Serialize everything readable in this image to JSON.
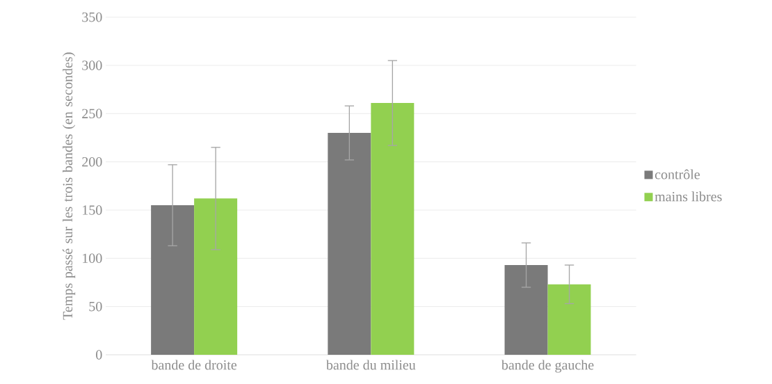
{
  "chart_data": {
    "type": "bar",
    "ylabel": "Temps passé sur les trois bandes (en secondes)",
    "categories": [
      "bande de droite",
      "bande du milieu",
      "bande de gauche"
    ],
    "series": [
      {
        "name": "contrôle",
        "color": "#7a7a7a",
        "values": [
          155,
          230,
          93
        ],
        "errors": [
          42,
          28,
          23
        ]
      },
      {
        "name": "mains libres",
        "color": "#92d050",
        "values": [
          162,
          261,
          73
        ],
        "errors": [
          53,
          44,
          20
        ]
      }
    ],
    "ylim": [
      0,
      350
    ],
    "yticks": [
      0,
      50,
      100,
      150,
      200,
      250,
      300,
      350
    ],
    "grid": "y",
    "legend": "right"
  }
}
